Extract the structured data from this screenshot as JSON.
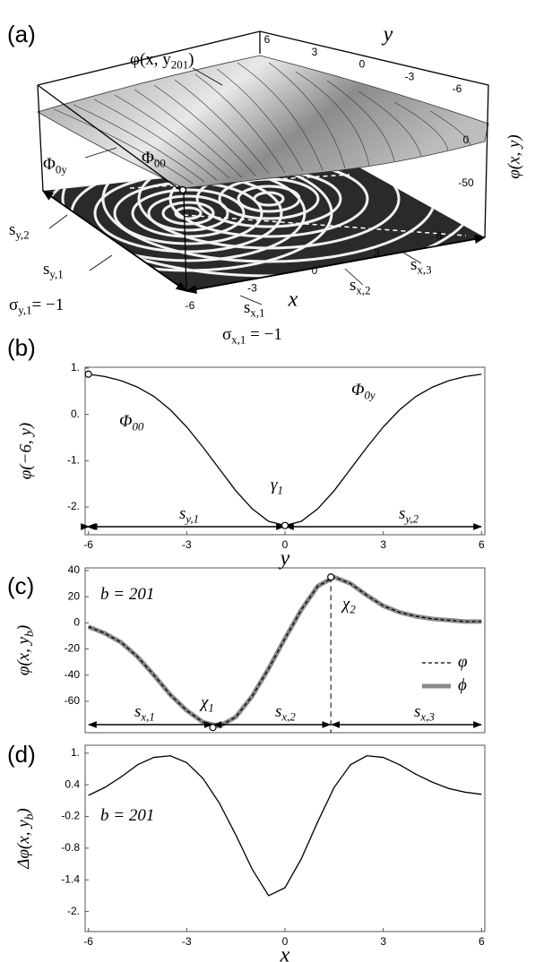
{
  "chart_data": [
    {
      "type": "surface3d",
      "panel": "(a)",
      "xlabel": "x",
      "ylabel": "y",
      "zlabel": "φ(x, y)",
      "xticks": [
        -6,
        -3,
        0,
        3,
        6
      ],
      "yticks": [
        6,
        3,
        0,
        -3,
        -6
      ],
      "zticks": [
        0,
        -50
      ],
      "annotations": [
        {
          "text": "φ(x, y",
          "sub": "201",
          "tail": ")"
        },
        {
          "text": "Φ",
          "sub": "0y"
        },
        {
          "text": "Φ",
          "sub": "00"
        },
        {
          "text": "s",
          "sub": "y,2"
        },
        {
          "text": "s",
          "sub": "y,1"
        },
        {
          "text": "σ",
          "sub": "y,1",
          "tail": "= −1"
        },
        {
          "text": "s",
          "sub": "x,1"
        },
        {
          "text": "s",
          "sub": "x,2"
        },
        {
          "text": "s",
          "sub": "x,3"
        },
        {
          "text": "σ",
          "sub": "x,1",
          "tail": " = −1"
        }
      ]
    },
    {
      "type": "line",
      "panel": "(b)",
      "xlabel": "y",
      "ylabel": "φ(−6, y)",
      "x": [
        -6,
        -5.5,
        -5,
        -4.5,
        -4,
        -3.5,
        -3,
        -2.5,
        -2,
        -1.5,
        -1,
        -0.5,
        0,
        0.5,
        1,
        1.5,
        2,
        2.5,
        3,
        3.5,
        4,
        4.5,
        5,
        5.5,
        6
      ],
      "values": [
        0.87,
        0.82,
        0.73,
        0.59,
        0.39,
        0.1,
        -0.27,
        -0.71,
        -1.18,
        -1.65,
        -2.04,
        -2.31,
        -2.4,
        -2.31,
        -2.04,
        -1.65,
        -1.18,
        -0.71,
        -0.27,
        0.1,
        0.39,
        0.59,
        0.73,
        0.82,
        0.87
      ],
      "color": "#000000",
      "points": {
        "x": [
          -6,
          0
        ],
        "values": [
          0.87,
          -2.4
        ]
      },
      "xlim": [
        -6.1,
        6.1
      ],
      "ylim": [
        -2.6,
        1.02
      ],
      "xticks": [
        -6,
        -3,
        0,
        3,
        6
      ],
      "yticks": [
        {
          "value": 1,
          "label": "1."
        },
        {
          "value": 0,
          "label": "0."
        },
        {
          "value": -1,
          "label": "-1."
        },
        {
          "value": -2,
          "label": "-2."
        }
      ],
      "annotations": [
        {
          "text": "Φ",
          "sub": "00"
        },
        {
          "text": "γ",
          "sub": "1"
        },
        {
          "text": "Φ",
          "sub": "0y"
        },
        {
          "text": "s",
          "sub": "y,1"
        },
        {
          "text": "s",
          "sub": "y,2"
        }
      ]
    },
    {
      "type": "line",
      "panel": "(c)",
      "ylabel": {
        "text": "φ(x, y",
        "sub": "b",
        "tail": ")"
      },
      "x": [
        -6,
        -5.5,
        -5,
        -4.5,
        -4,
        -3.5,
        -3,
        -2.5,
        -2,
        -1.5,
        -1,
        -0.5,
        0,
        0.5,
        1,
        1.5,
        2,
        2.5,
        3,
        3.5,
        4,
        4.5,
        5,
        5.5,
        6
      ],
      "series": [
        {
          "name": "φ",
          "color": "#000000",
          "dashed": true,
          "values": [
            -3,
            -8,
            -15,
            -26,
            -40,
            -55,
            -67,
            -76,
            -79,
            -72,
            -56,
            -35,
            -12,
            10,
            28,
            35,
            30,
            21,
            13,
            8,
            5,
            3,
            2,
            1,
            1
          ]
        },
        {
          "name": "ϕ",
          "color": "#8a8a8a",
          "dashed": false,
          "values": [
            -3,
            -8,
            -15,
            -26,
            -40,
            -55,
            -67,
            -76,
            -79,
            -72,
            -56,
            -35,
            -12,
            10,
            28,
            35,
            30,
            21,
            13,
            8,
            5,
            3,
            2,
            1,
            1
          ]
        }
      ],
      "points": {
        "x": [
          -2.2,
          1.4
        ],
        "values": [
          -80,
          35
        ]
      },
      "xlim": [
        -6.1,
        6.1
      ],
      "ylim": [
        -84,
        42
      ],
      "yticks": [
        40,
        20,
        0,
        -20,
        -40,
        -60
      ],
      "annotations": [
        {
          "text": "b = 201"
        },
        {
          "text": "χ",
          "sub": "1"
        },
        {
          "text": "χ",
          "sub": "2"
        },
        {
          "text": "s",
          "sub": "x,1"
        },
        {
          "text": "s",
          "sub": "x,2"
        },
        {
          "text": "s",
          "sub": "x,3"
        }
      ]
    },
    {
      "type": "line",
      "panel": "(d)",
      "xlabel": "x",
      "ylabel": {
        "text": "Δφ(x, y",
        "sub": "b",
        "tail": ")"
      },
      "x": [
        -6,
        -5.5,
        -5,
        -4.5,
        -4,
        -3.5,
        -3,
        -2.5,
        -2,
        -1.5,
        -1,
        -0.5,
        0,
        0.5,
        1,
        1.5,
        2,
        2.5,
        3,
        3.5,
        4,
        4.5,
        5,
        5.5,
        6
      ],
      "values": [
        0.2,
        0.35,
        0.55,
        0.78,
        0.92,
        0.95,
        0.82,
        0.52,
        0.05,
        -0.55,
        -1.2,
        -1.7,
        -1.55,
        -1.0,
        -0.3,
        0.35,
        0.78,
        0.95,
        0.92,
        0.78,
        0.6,
        0.45,
        0.33,
        0.26,
        0.22
      ],
      "color": "#000000",
      "xlim": [
        -6.1,
        6.1
      ],
      "ylim": [
        -2.38,
        1.15
      ],
      "xticks": [
        -6,
        -3,
        0,
        3,
        6
      ],
      "yticks": [
        {
          "value": 1,
          "label": "1."
        },
        0.4,
        -0.2,
        -0.8,
        -1.4,
        {
          "value": -2,
          "label": "-2."
        }
      ],
      "annotations": [
        {
          "text": "b = 201"
        }
      ]
    }
  ]
}
